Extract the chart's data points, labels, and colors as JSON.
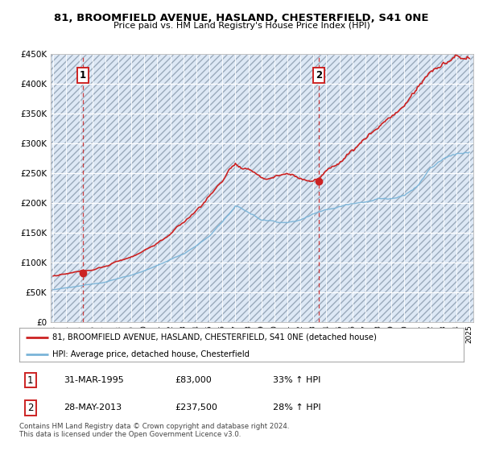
{
  "title": "81, BROOMFIELD AVENUE, HASLAND, CHESTERFIELD, S41 0NE",
  "subtitle": "Price paid vs. HM Land Registry's House Price Index (HPI)",
  "legend_line1": "81, BROOMFIELD AVENUE, HASLAND, CHESTERFIELD, S41 0NE (detached house)",
  "legend_line2": "HPI: Average price, detached house, Chesterfield",
  "table_rows": [
    {
      "num": "1",
      "date": "31-MAR-1995",
      "price": "£83,000",
      "change": "33% ↑ HPI"
    },
    {
      "num": "2",
      "date": "28-MAY-2013",
      "price": "£237,500",
      "change": "28% ↑ HPI"
    }
  ],
  "footnote": "Contains HM Land Registry data © Crown copyright and database right 2024.\nThis data is licensed under the Open Government Licence v3.0.",
  "sale1_year": 1995.25,
  "sale1_price": 83000,
  "sale2_year": 2013.4,
  "sale2_price": 237500,
  "hpi_color": "#7ab4d8",
  "price_color": "#cc2222",
  "dashed_line_color": "#cc2222",
  "ylim": [
    0,
    450000
  ],
  "yticks": [
    0,
    50000,
    100000,
    150000,
    200000,
    250000,
    300000,
    350000,
    400000,
    450000
  ],
  "xmin": 1993,
  "xmax": 2025,
  "bg_base_color": "#dde8f5",
  "hatch_color": "#aabbcc"
}
